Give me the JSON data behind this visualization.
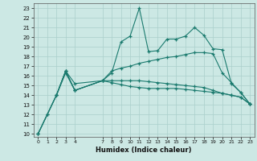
{
  "xlabel": "Humidex (Indice chaleur)",
  "bg_color": "#cce8e4",
  "line_color": "#1a7a6e",
  "grid_color": "#aacfcb",
  "series1": {
    "x": [
      0,
      1,
      2,
      3,
      4,
      7,
      8,
      9,
      10,
      11,
      12,
      13,
      14,
      15,
      16,
      17,
      18,
      19,
      20,
      21,
      22,
      23
    ],
    "y": [
      10,
      12,
      14,
      16.3,
      14.5,
      15.5,
      16.3,
      19.5,
      20.1,
      23.0,
      18.5,
      18.6,
      19.8,
      19.8,
      20.1,
      21.0,
      20.2,
      18.8,
      18.7,
      15.2,
      14.3,
      13.1
    ]
  },
  "series2": {
    "x": [
      0,
      1,
      2,
      3,
      4,
      7,
      8,
      9,
      10,
      11,
      12,
      13,
      14,
      15,
      16,
      17,
      18,
      19,
      20,
      21,
      22,
      23
    ],
    "y": [
      10,
      12,
      14,
      16.5,
      15.2,
      15.5,
      15.5,
      15.5,
      15.5,
      15.5,
      15.4,
      15.3,
      15.2,
      15.1,
      15.0,
      14.9,
      14.8,
      14.5,
      14.2,
      14.0,
      13.8,
      13.1
    ]
  },
  "series3": {
    "x": [
      0,
      2,
      3,
      4,
      7,
      8,
      9,
      10,
      11,
      12,
      13,
      14,
      15,
      16,
      17,
      18,
      19,
      20,
      21,
      22,
      23
    ],
    "y": [
      10,
      14,
      16.5,
      14.5,
      15.5,
      16.5,
      16.8,
      17.0,
      17.3,
      17.5,
      17.7,
      17.9,
      18.0,
      18.2,
      18.4,
      18.4,
      18.3,
      16.3,
      15.3,
      14.3,
      13.1
    ]
  },
  "series4": {
    "x": [
      2,
      3,
      4,
      7,
      8,
      9,
      10,
      11,
      12,
      13,
      14,
      15,
      16,
      17,
      18,
      19,
      20,
      21,
      22,
      23
    ],
    "y": [
      14,
      16.5,
      14.5,
      15.5,
      15.3,
      15.1,
      14.9,
      14.8,
      14.7,
      14.7,
      14.7,
      14.7,
      14.6,
      14.5,
      14.4,
      14.3,
      14.2,
      14.0,
      13.8,
      13.1
    ]
  },
  "xlim": [
    -0.5,
    23.5
  ],
  "ylim": [
    9.7,
    23.5
  ],
  "xticks": [
    0,
    1,
    2,
    3,
    4,
    7,
    8,
    9,
    10,
    11,
    12,
    13,
    14,
    15,
    16,
    17,
    18,
    19,
    20,
    21,
    22,
    23
  ],
  "yticks": [
    10,
    11,
    12,
    13,
    14,
    15,
    16,
    17,
    18,
    19,
    20,
    21,
    22,
    23
  ]
}
